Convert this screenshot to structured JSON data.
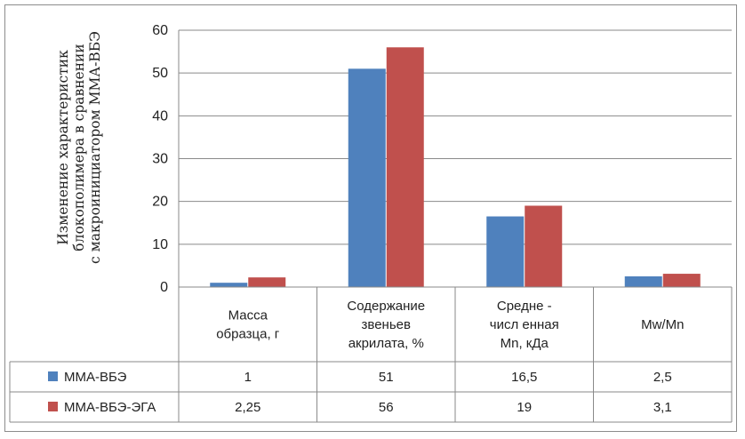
{
  "chart_data": {
    "type": "bar",
    "title": "",
    "ylabel_lines": [
      "Изменение характеристик",
      "блокополимера в сравнении",
      "с макроинициатором ММА-ВБЭ"
    ],
    "ylim": [
      0,
      60
    ],
    "yticks": [
      0,
      10,
      20,
      30,
      40,
      50,
      60
    ],
    "grid": true,
    "legend": "data-table-left",
    "categories": [
      [
        "Масса",
        "образца, г"
      ],
      [
        "Содержание",
        "звеньев",
        "акрилата, %"
      ],
      [
        "Средне -",
        "числ енная",
        "Mn, кДа"
      ],
      [
        "Mw/Mn"
      ]
    ],
    "series": [
      {
        "name": "ММА-ВБЭ",
        "color": "#4f81bd",
        "values": [
          1,
          51,
          16.5,
          2.5
        ],
        "labels": [
          "1",
          "51",
          "16,5",
          "2,5"
        ]
      },
      {
        "name": "ММА-ВБЭ-ЭГА",
        "color": "#c0504d",
        "values": [
          2.25,
          56,
          19,
          3.1
        ],
        "labels": [
          "2,25",
          "56",
          "19",
          "3,1"
        ]
      }
    ]
  }
}
